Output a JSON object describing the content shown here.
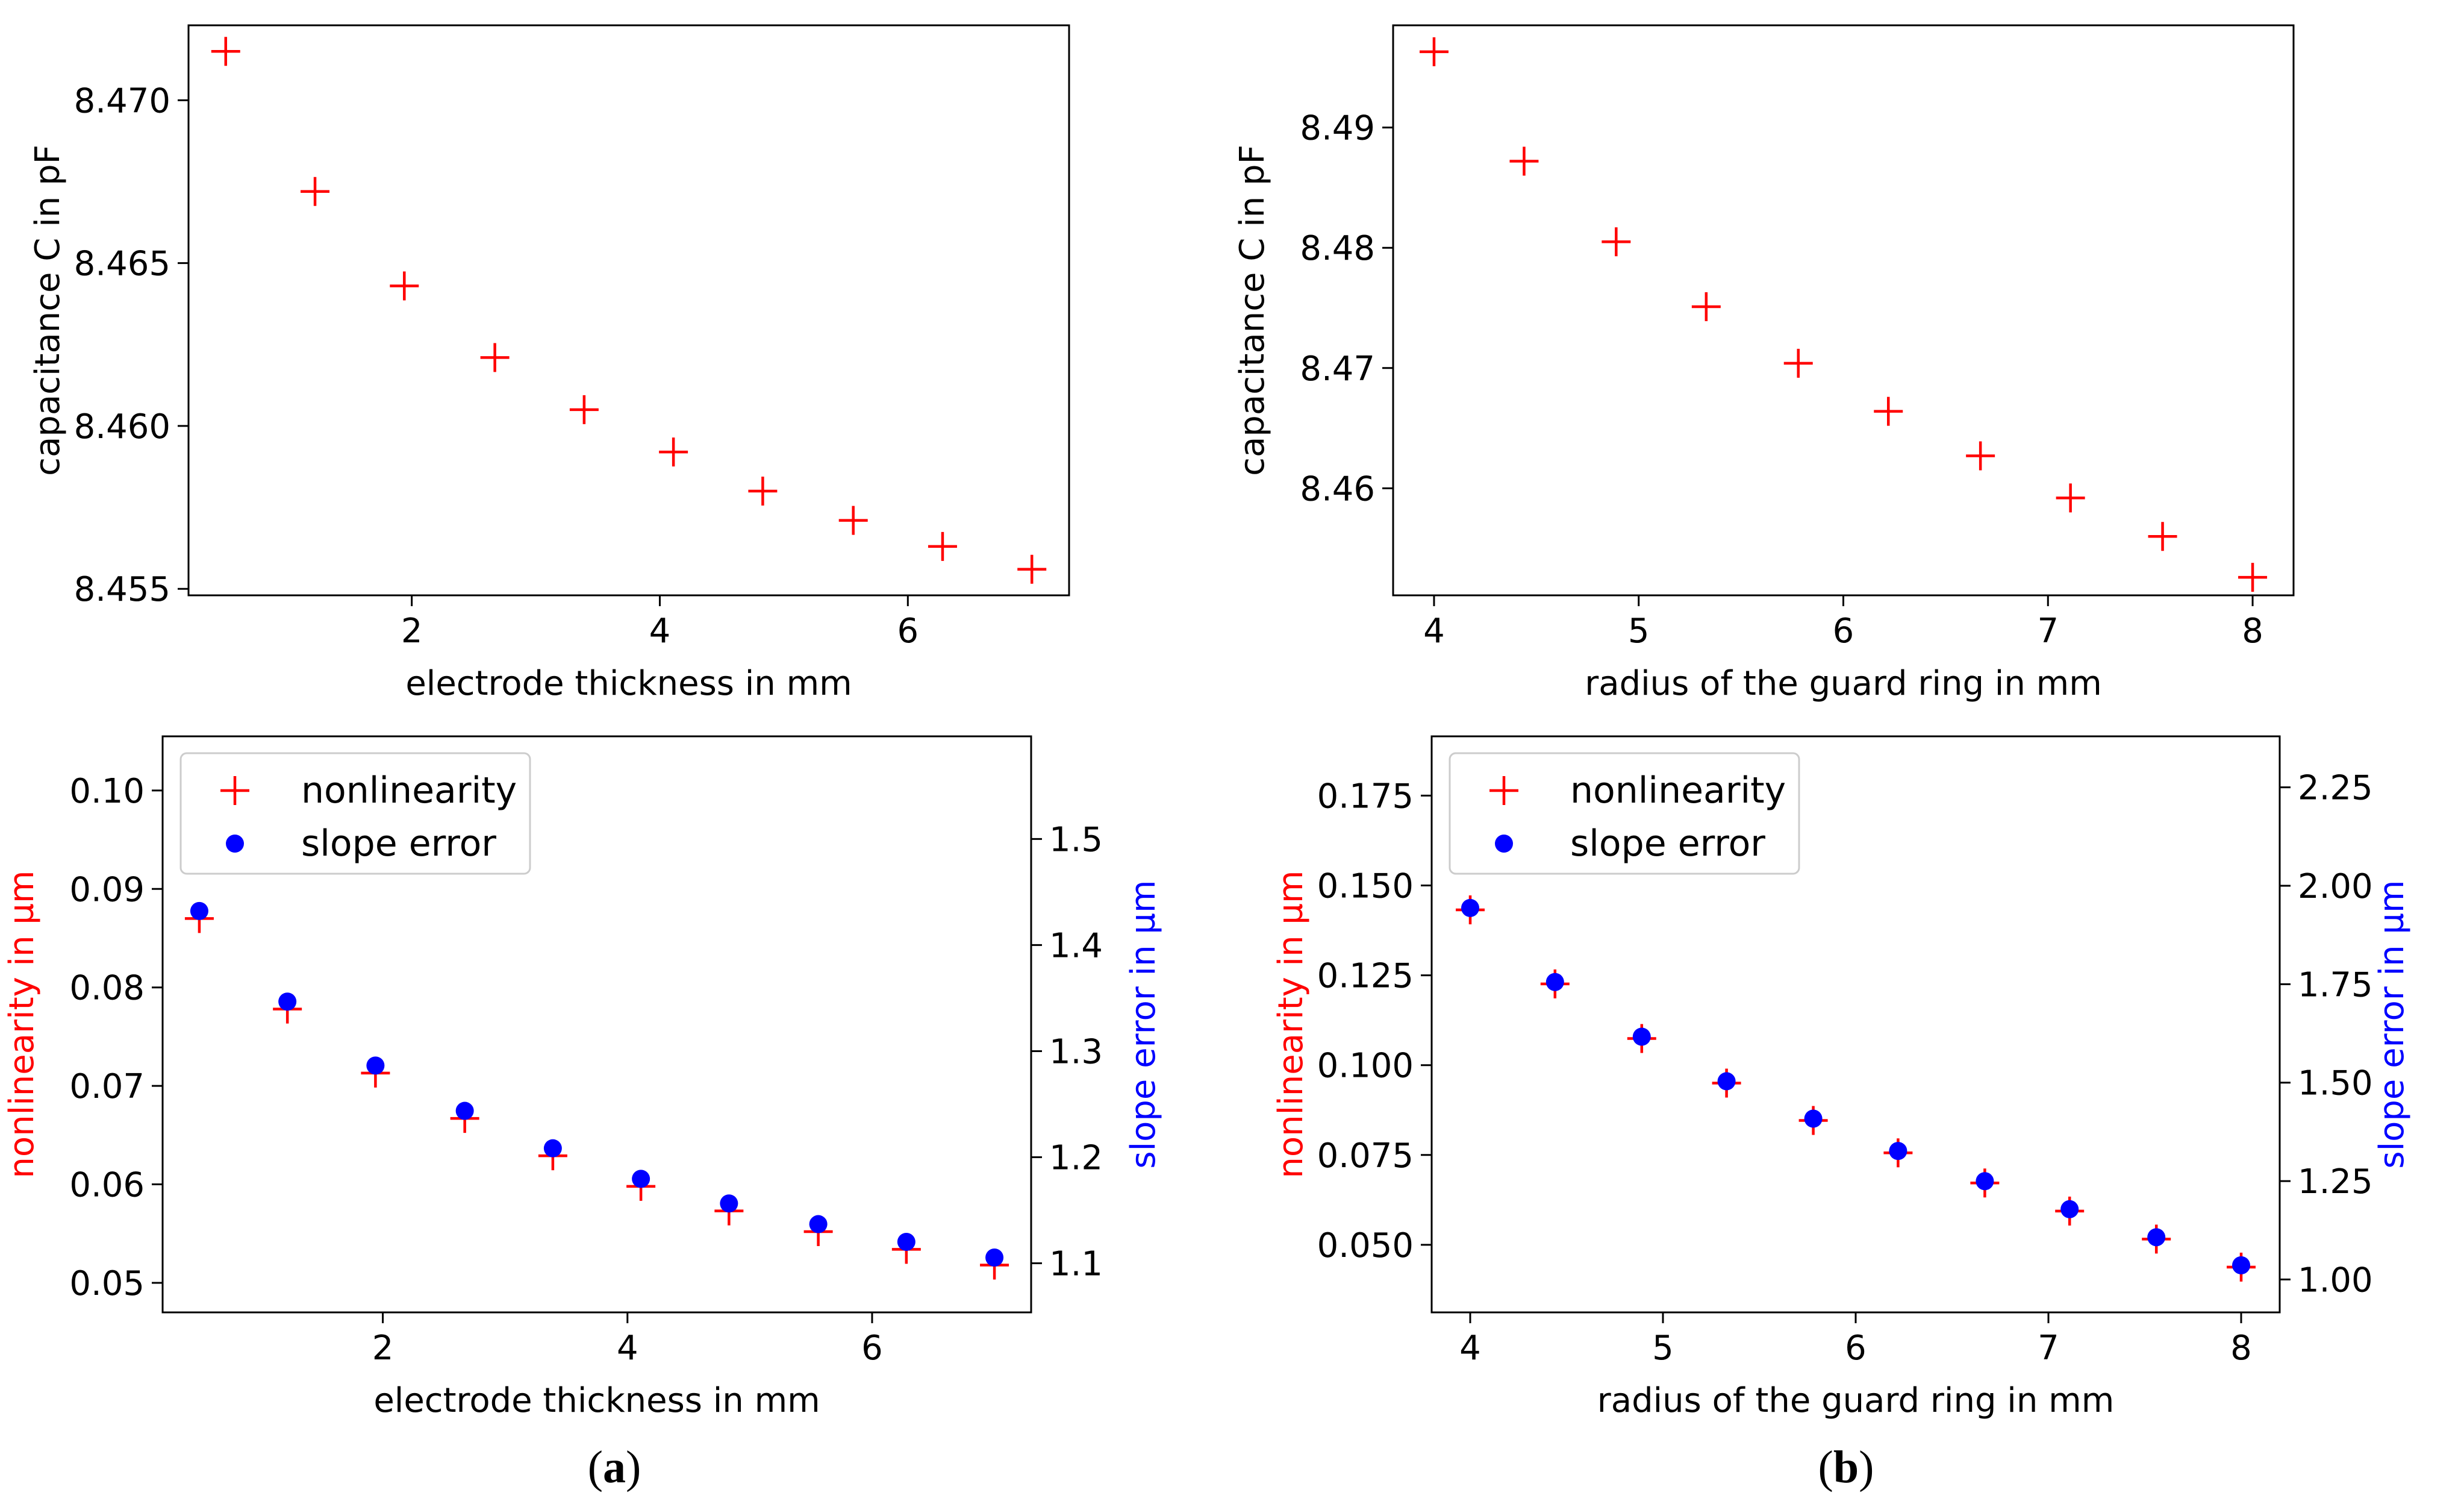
{
  "colors": {
    "red": "#ff0000",
    "blue": "#0000ff",
    "axis": "#000000"
  },
  "panel_labels": {
    "a": "a",
    "b": "b"
  },
  "chart_data": [
    {
      "id": "a_top",
      "type": "scatter",
      "title": "",
      "xlabel": "electrode thickness in mm",
      "ylabel": "capacitance C in pF",
      "xlim": [
        0.2,
        7.3
      ],
      "ylim": [
        8.4548,
        8.4723
      ],
      "xticks": [
        2,
        4,
        6
      ],
      "xtick_labels": [
        "2",
        "4",
        "6"
      ],
      "yticks": [
        8.455,
        8.46,
        8.465,
        8.47
      ],
      "ytick_labels": [
        "8.455",
        "8.460",
        "8.465",
        "8.470"
      ],
      "x": [
        0.5,
        1.22,
        1.94,
        2.67,
        3.39,
        4.11,
        4.83,
        5.56,
        6.28,
        7.0
      ],
      "y": [
        8.4715,
        8.4672,
        8.4643,
        8.4621,
        8.4605,
        8.4592,
        8.458,
        8.4571,
        8.4563,
        8.4556
      ],
      "marker": "+",
      "color": "#ff0000"
    },
    {
      "id": "b_top",
      "type": "scatter",
      "title": "",
      "xlabel": "radius of the guard ring in mm",
      "ylabel": "capacitance C in pF",
      "xlim": [
        3.8,
        8.2
      ],
      "ylim": [
        8.4511,
        8.4985
      ],
      "xticks": [
        4,
        5,
        6,
        7,
        8
      ],
      "xtick_labels": [
        "4",
        "5",
        "6",
        "7",
        "8"
      ],
      "yticks": [
        8.46,
        8.47,
        8.48,
        8.49
      ],
      "ytick_labels": [
        "8.46",
        "8.47",
        "8.48",
        "8.49"
      ],
      "x": [
        4.0,
        4.44,
        4.89,
        5.33,
        5.78,
        6.22,
        6.67,
        7.11,
        7.56,
        8.0
      ],
      "y": [
        8.4963,
        8.4872,
        8.4805,
        8.4751,
        8.4704,
        8.4664,
        8.4627,
        8.4592,
        8.456,
        8.4526
      ],
      "marker": "+",
      "color": "#ff0000"
    },
    {
      "id": "a_bottom",
      "type": "scatter",
      "title": "",
      "xlabel": "electrode thickness in mm",
      "ylabel": "nonlinearity in µm",
      "y2label": "slope error in µm",
      "xlim": [
        0.2,
        7.3
      ],
      "ylim": [
        0.047,
        0.1055
      ],
      "y2lim": [
        1.0537,
        1.5968
      ],
      "xticks": [
        2,
        4,
        6
      ],
      "xtick_labels": [
        "2",
        "4",
        "6"
      ],
      "yticks": [
        0.05,
        0.06,
        0.07,
        0.08,
        0.09,
        0.1
      ],
      "ytick_labels": [
        "0.05",
        "0.06",
        "0.07",
        "0.08",
        "0.09",
        "0.10"
      ],
      "y2ticks": [
        1.1,
        1.2,
        1.3,
        1.4,
        1.5
      ],
      "y2tick_labels": [
        "1.1",
        "1.2",
        "1.3",
        "1.4",
        "1.5"
      ],
      "legend": {
        "position": "top-left",
        "entries": [
          "nonlinearity",
          "slope error"
        ]
      },
      "series": [
        {
          "name": "nonlinearity",
          "axis": "left",
          "marker": "+",
          "color": "#ff0000",
          "x": [
            0.5,
            1.22,
            1.94,
            2.67,
            3.39,
            4.11,
            4.83,
            5.56,
            6.28,
            7.0
          ],
          "y": [
            0.087,
            0.0778,
            0.0713,
            0.0667,
            0.0629,
            0.0598,
            0.0573,
            0.0552,
            0.0534,
            0.0518
          ]
        },
        {
          "name": "slope error",
          "axis": "right",
          "marker": "o",
          "color": "#0000ff",
          "x": [
            0.5,
            1.22,
            1.94,
            2.67,
            3.39,
            4.11,
            4.83,
            5.56,
            6.28,
            7.0
          ],
          "y": [
            1.4321,
            1.3467,
            1.2864,
            1.2437,
            1.2084,
            1.1796,
            1.1564,
            1.1369,
            1.1202,
            1.1054
          ]
        }
      ]
    },
    {
      "id": "b_bottom",
      "type": "scatter",
      "title": "",
      "xlabel": "radius of the guard ring in mm",
      "ylabel": "nonlinearity in µm",
      "y2label": "slope error in µm",
      "xlim": [
        3.8,
        8.2
      ],
      "ylim": [
        0.0312,
        0.1915
      ],
      "y2lim": [
        0.9165,
        2.3795
      ],
      "xticks": [
        4,
        5,
        6,
        7,
        8
      ],
      "xtick_labels": [
        "4",
        "5",
        "6",
        "7",
        "8"
      ],
      "yticks": [
        0.05,
        0.075,
        0.1,
        0.125,
        0.15,
        0.175
      ],
      "ytick_labels": [
        "0.050",
        "0.075",
        "0.100",
        "0.125",
        "0.150",
        "0.175"
      ],
      "y2ticks": [
        1.0,
        1.25,
        1.5,
        1.75,
        2.0,
        2.25
      ],
      "y2tick_labels": [
        "1.00",
        "1.25",
        "1.50",
        "1.75",
        "2.00",
        "2.25"
      ],
      "legend": {
        "position": "top-left",
        "entries": [
          "nonlinearity",
          "slope error"
        ]
      },
      "series": [
        {
          "name": "nonlinearity",
          "axis": "left",
          "marker": "+",
          "color": "#ff0000",
          "x": [
            4.0,
            4.44,
            4.89,
            5.33,
            5.78,
            6.22,
            6.67,
            7.11,
            7.56,
            8.0
          ],
          "y": [
            0.1432,
            0.1226,
            0.1074,
            0.095,
            0.0846,
            0.0756,
            0.0672,
            0.0594,
            0.0516,
            0.0438
          ]
        },
        {
          "name": "slope error",
          "axis": "right",
          "marker": "o",
          "color": "#0000ff",
          "x": [
            4.0,
            4.44,
            4.89,
            5.33,
            5.78,
            6.22,
            6.67,
            7.11,
            7.56,
            8.0
          ],
          "y": [
            1.9435,
            1.7555,
            1.6166,
            1.5035,
            1.4085,
            1.3264,
            1.2497,
            1.1785,
            1.1073,
            1.0361
          ]
        }
      ]
    }
  ]
}
